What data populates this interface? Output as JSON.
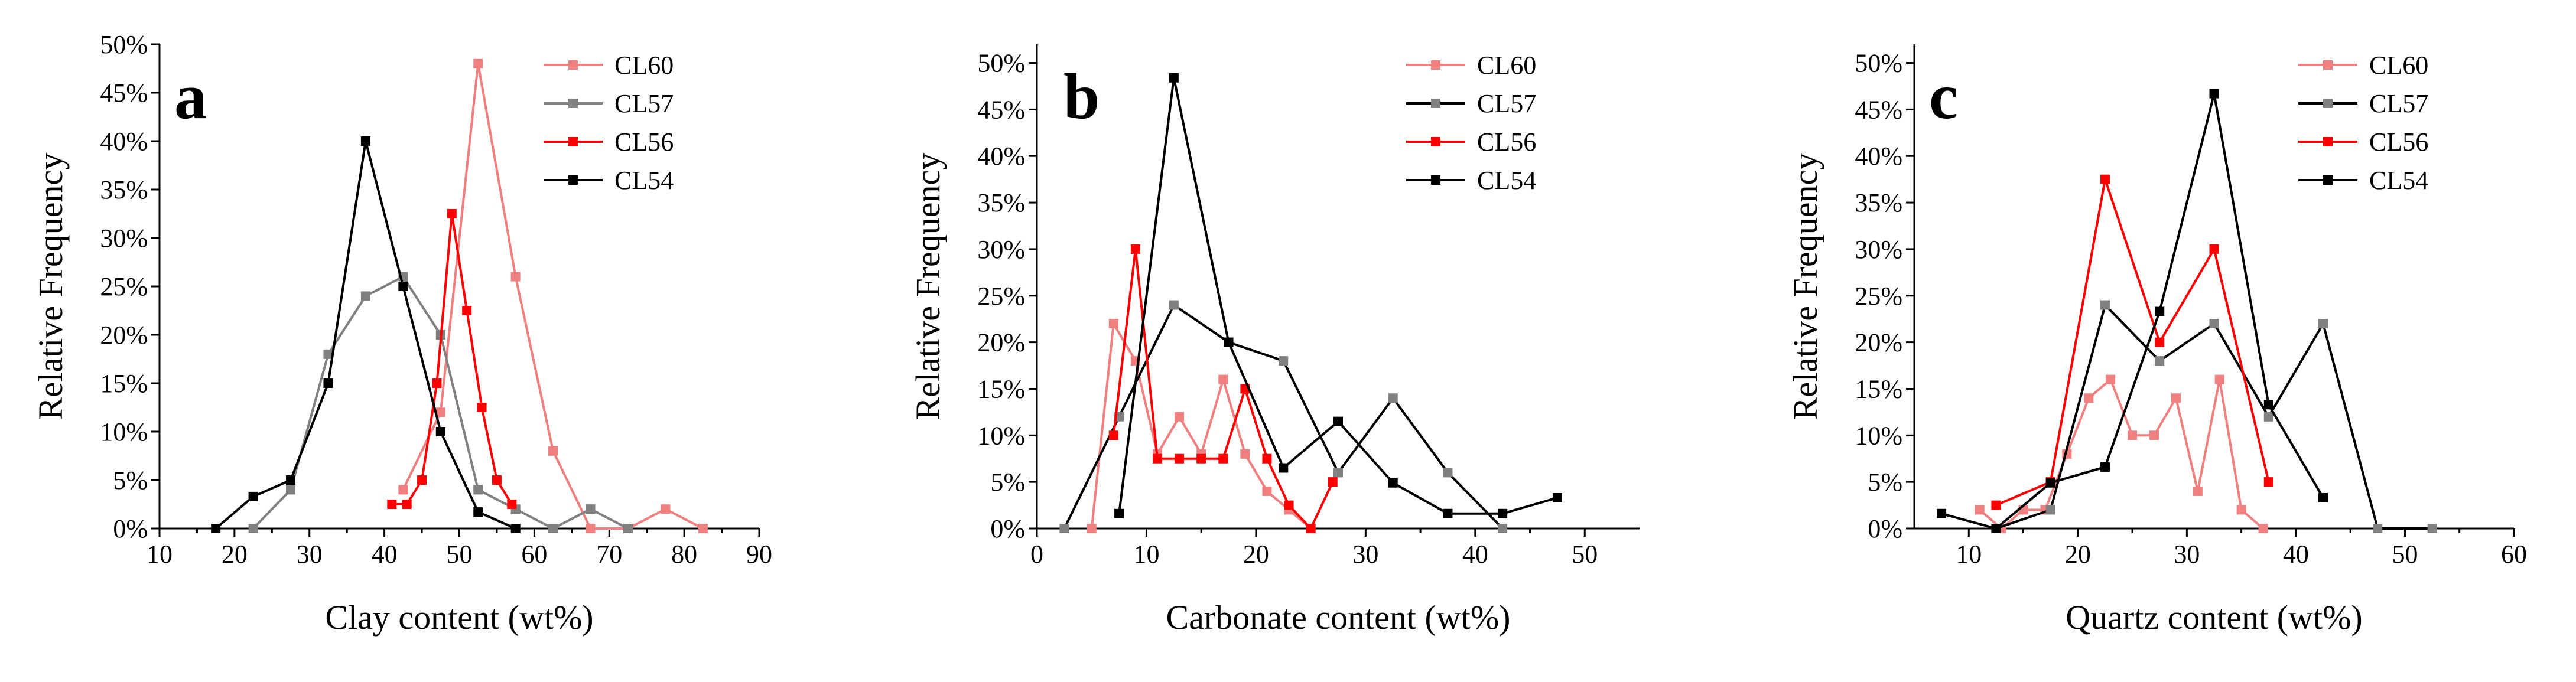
{
  "chart_data": [
    {
      "type": "line",
      "panel_letter": "a",
      "xlabel": "Clay content (wt%)",
      "ylabel": "Relative Frequency",
      "xlim": [
        10,
        90
      ],
      "ylim": [
        0,
        50
      ],
      "x_ticks": [
        10,
        20,
        30,
        40,
        50,
        60,
        70,
        80,
        90
      ],
      "x_tick_labels": [
        "10",
        "20",
        "30",
        "40",
        "50",
        "60",
        "70",
        "80",
        "90"
      ],
      "y_ticks": [
        0,
        5,
        10,
        15,
        20,
        25,
        30,
        35,
        40,
        45,
        50
      ],
      "y_tick_labels": [
        "0%",
        "5%",
        "10%",
        "15%",
        "20%",
        "25%",
        "30%",
        "35%",
        "40%",
        "45%",
        "50%"
      ],
      "legend_position": "top-right",
      "series": [
        {
          "name": "CL60",
          "color": "#f08080",
          "x": [
            42.5,
            47.5,
            52.5,
            57.5,
            62.5,
            67.5,
            72.5,
            77.5,
            82.5
          ],
          "y": [
            4,
            12,
            48,
            26,
            8,
            0,
            0,
            2,
            0
          ]
        },
        {
          "name": "CL57",
          "color": "#808080",
          "x": [
            22.5,
            27.5,
            32.5,
            37.5,
            42.5,
            47.5,
            52.5,
            57.5,
            62.5,
            67.5,
            72.5
          ],
          "y": [
            0,
            4,
            18,
            24,
            26,
            20,
            4,
            2,
            0,
            2,
            0
          ]
        },
        {
          "name": "CL56",
          "color": "#ff0000",
          "x": [
            41,
            43,
            45,
            47,
            49,
            51,
            53,
            55,
            57
          ],
          "y": [
            2.5,
            2.5,
            5,
            15,
            32.5,
            22.5,
            12.5,
            5,
            2.5
          ]
        },
        {
          "name": "CL54",
          "color": "#000000",
          "x": [
            17.5,
            22.5,
            27.5,
            32.5,
            37.5,
            42.5,
            47.5,
            52.5,
            57.5
          ],
          "y": [
            0,
            3.3,
            5,
            15,
            40,
            25,
            10,
            1.7,
            0
          ]
        }
      ]
    },
    {
      "type": "line",
      "panel_letter": "b",
      "xlabel": "Carbonate content (wt%)",
      "ylabel": "Relative Frequency",
      "xlim": [
        0,
        55
      ],
      "ylim": [
        0,
        52
      ],
      "x_ticks": [
        0,
        10,
        20,
        30,
        40,
        50
      ],
      "x_tick_labels": [
        "0",
        "10",
        "20",
        "30",
        "40",
        "50"
      ],
      "y_ticks": [
        0,
        5,
        10,
        15,
        20,
        25,
        30,
        35,
        40,
        45,
        50
      ],
      "y_tick_labels": [
        "0%",
        "5%",
        "10%",
        "15%",
        "20%",
        "25%",
        "30%",
        "35%",
        "40%",
        "45%",
        "50%"
      ],
      "legend_position": "top-right",
      "series": [
        {
          "name": "CL60",
          "color": "#f08080",
          "x": [
            5,
            7,
            9,
            11,
            13,
            15,
            17,
            19,
            21,
            23,
            25
          ],
          "y": [
            0,
            22,
            18,
            8,
            12,
            8,
            16,
            8,
            4,
            2,
            0
          ]
        },
        {
          "name": "CL57",
          "color": "#000000",
          "marker_color": "#808080",
          "x": [
            2.5,
            7.5,
            12.5,
            17.5,
            22.5,
            27.5,
            32.5,
            37.5,
            42.5
          ],
          "y": [
            0,
            12,
            24,
            20,
            18,
            6,
            14,
            6,
            0
          ]
        },
        {
          "name": "CL56",
          "color": "#ff0000",
          "x": [
            7,
            9,
            11,
            13,
            15,
            17,
            19,
            21,
            23,
            25,
            27
          ],
          "y": [
            10,
            30,
            7.5,
            7.5,
            7.5,
            7.5,
            15,
            7.5,
            2.5,
            0,
            5
          ]
        },
        {
          "name": "CL54",
          "color": "#000000",
          "x": [
            7.5,
            12.5,
            17.5,
            22.5,
            27.5,
            32.5,
            37.5,
            42.5,
            47.5
          ],
          "y": [
            1.6,
            48.4,
            20,
            6.5,
            11.5,
            4.9,
            1.6,
            1.6,
            3.3
          ]
        }
      ]
    },
    {
      "type": "line",
      "panel_letter": "c",
      "xlabel": "Quartz content (wt%)",
      "ylabel": "Relative Frequency",
      "xlim": [
        5,
        60
      ],
      "ylim": [
        0,
        52
      ],
      "x_ticks": [
        10,
        20,
        30,
        40,
        50,
        60
      ],
      "x_tick_labels": [
        "10",
        "20",
        "30",
        "40",
        "50",
        "60"
      ],
      "y_ticks": [
        0,
        5,
        10,
        15,
        20,
        25,
        30,
        35,
        40,
        45,
        50
      ],
      "y_tick_labels": [
        "0%",
        "5%",
        "10%",
        "15%",
        "20%",
        "25%",
        "30%",
        "35%",
        "40%",
        "45%",
        "50%"
      ],
      "legend_position": "top-right",
      "series": [
        {
          "name": "CL60",
          "color": "#f08080",
          "x": [
            11,
            13,
            15,
            17,
            19,
            21,
            23,
            25,
            27,
            29,
            31,
            33,
            35,
            37
          ],
          "y": [
            2,
            0,
            2,
            2,
            8,
            14,
            16,
            10,
            10,
            14,
            4,
            16,
            2,
            0
          ]
        },
        {
          "name": "CL57",
          "color": "#000000",
          "marker_color": "#808080",
          "x": [
            12.5,
            17.5,
            22.5,
            27.5,
            32.5,
            37.5,
            42.5,
            47.5,
            52.5
          ],
          "y": [
            0,
            2,
            24,
            18,
            22,
            12,
            22,
            0,
            0
          ]
        },
        {
          "name": "CL56",
          "color": "#ff0000",
          "x": [
            12.5,
            17.5,
            22.5,
            27.5,
            32.5,
            37.5
          ],
          "y": [
            2.5,
            5,
            37.5,
            20,
            30,
            5
          ]
        },
        {
          "name": "CL54",
          "color": "#000000",
          "x": [
            7.5,
            12.5,
            17.5,
            22.5,
            27.5,
            32.5,
            37.5,
            42.5
          ],
          "y": [
            1.6,
            0,
            4.9,
            6.6,
            23.3,
            46.7,
            13.3,
            3.3
          ]
        }
      ]
    }
  ]
}
